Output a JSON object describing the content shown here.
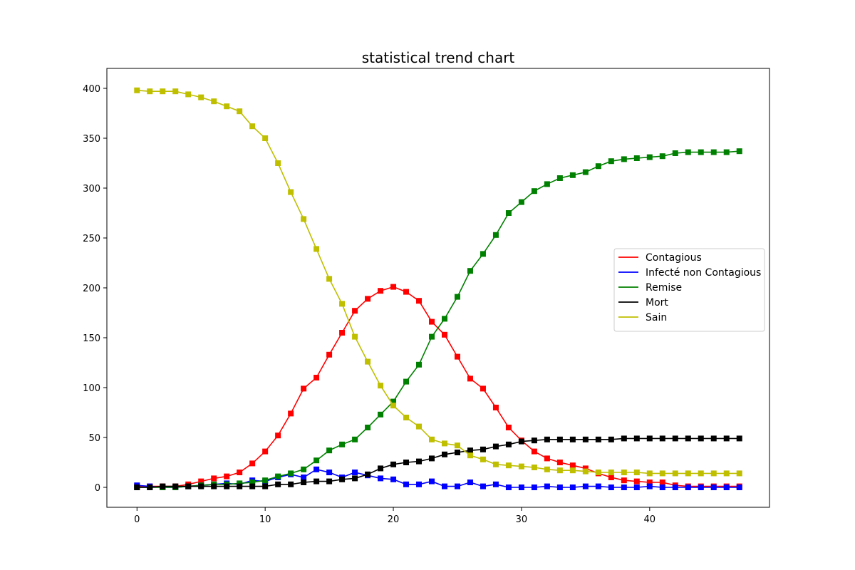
{
  "chart_data": {
    "type": "line",
    "title": "statistical trend chart",
    "xlabel": "",
    "ylabel": "",
    "xlim": [
      -2.35,
      49.35
    ],
    "ylim": [
      -20,
      420
    ],
    "x_ticks": [
      0,
      10,
      20,
      30,
      40
    ],
    "y_ticks": [
      0,
      50,
      100,
      150,
      200,
      250,
      300,
      350,
      400
    ],
    "grid": false,
    "legend_position": "center-right",
    "marker": "square",
    "x": [
      0,
      1,
      2,
      3,
      4,
      5,
      6,
      7,
      8,
      9,
      10,
      11,
      12,
      13,
      14,
      15,
      16,
      17,
      18,
      19,
      20,
      21,
      22,
      23,
      24,
      25,
      26,
      27,
      28,
      29,
      30,
      31,
      32,
      33,
      34,
      35,
      36,
      37,
      38,
      39,
      40,
      41,
      42,
      43,
      44,
      45,
      46,
      47
    ],
    "series": [
      {
        "name": "Contagious",
        "color": "#ff0000",
        "values": [
          1,
          1,
          1,
          1,
          3,
          6,
          9,
          11,
          15,
          24,
          36,
          52,
          74,
          99,
          110,
          133,
          155,
          177,
          189,
          197,
          201,
          196,
          187,
          166,
          153,
          131,
          109,
          99,
          80,
          60,
          47,
          36,
          29,
          25,
          22,
          19,
          14,
          10,
          7,
          6,
          5,
          5,
          2,
          1,
          1,
          1,
          1,
          1
        ]
      },
      {
        "name": "Infecté non Contagious",
        "color": "#0000ff",
        "values": [
          2,
          1,
          0,
          0,
          1,
          2,
          3,
          4,
          3,
          7,
          6,
          10,
          13,
          10,
          18,
          15,
          10,
          15,
          12,
          9,
          8,
          3,
          3,
          6,
          1,
          1,
          5,
          1,
          3,
          0,
          0,
          0,
          1,
          0,
          0,
          1,
          1,
          0,
          0,
          0,
          1,
          0,
          0,
          0,
          0,
          0,
          0,
          0
        ]
      },
      {
        "name": "Remise",
        "color": "#008000",
        "values": [
          0,
          0,
          0,
          0,
          1,
          2,
          3,
          3,
          4,
          5,
          7,
          11,
          14,
          18,
          27,
          37,
          43,
          48,
          60,
          73,
          86,
          106,
          123,
          151,
          169,
          191,
          217,
          234,
          253,
          275,
          286,
          297,
          304,
          310,
          313,
          316,
          322,
          327,
          329,
          330,
          331,
          332,
          335,
          336,
          336,
          336,
          336,
          337
        ]
      },
      {
        "name": "Mort",
        "color": "#000000",
        "values": [
          0,
          0,
          1,
          1,
          1,
          1,
          1,
          1,
          1,
          1,
          1,
          3,
          3,
          5,
          6,
          6,
          8,
          9,
          13,
          19,
          23,
          25,
          26,
          29,
          33,
          35,
          37,
          38,
          41,
          43,
          46,
          47,
          48,
          48,
          48,
          48,
          48,
          48,
          49,
          49,
          49,
          49,
          49,
          49,
          49,
          49,
          49,
          49
        ]
      },
      {
        "name": "Sain",
        "color": "#bfbf00",
        "values": [
          398,
          397,
          397,
          397,
          394,
          391,
          387,
          382,
          377,
          362,
          350,
          325,
          296,
          269,
          239,
          209,
          184,
          151,
          126,
          102,
          82,
          70,
          61,
          48,
          44,
          42,
          32,
          28,
          23,
          22,
          21,
          20,
          18,
          17,
          17,
          16,
          15,
          15,
          15,
          15,
          14,
          14,
          14,
          14,
          14,
          14,
          14,
          14
        ]
      }
    ]
  }
}
